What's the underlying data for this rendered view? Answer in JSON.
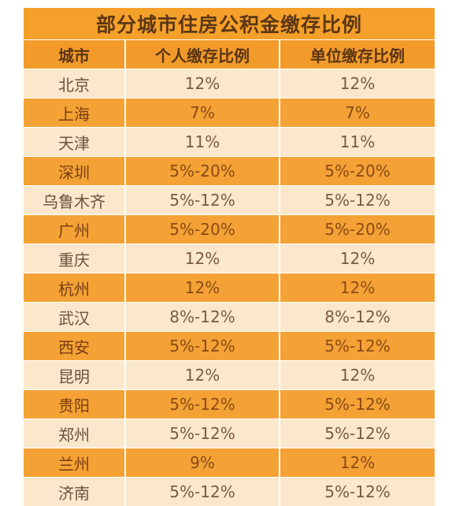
{
  "title": "部分城市住房公积金缴存比例",
  "columns": [
    "城市",
    "个人缴存比例",
    "单位缴存比例"
  ],
  "rows": [
    {
      "city": "北京",
      "personal": "12%",
      "employer": "12%"
    },
    {
      "city": "上海",
      "personal": "7%",
      "employer": "7%"
    },
    {
      "city": "天津",
      "personal": "11%",
      "employer": "11%"
    },
    {
      "city": "深圳",
      "personal": "5%-20%",
      "employer": "5%-20%"
    },
    {
      "city": "乌鲁木齐",
      "personal": "5%-12%",
      "employer": "5%-12%"
    },
    {
      "city": "广州",
      "personal": "5%-20%",
      "employer": "5%-20%"
    },
    {
      "city": "重庆",
      "personal": "12%",
      "employer": "12%"
    },
    {
      "city": "杭州",
      "personal": "12%",
      "employer": "12%"
    },
    {
      "city": "武汉",
      "personal": "8%-12%",
      "employer": "8%-12%"
    },
    {
      "city": "西安",
      "personal": "5%-12%",
      "employer": "5%-12%"
    },
    {
      "city": "昆明",
      "personal": "12%",
      "employer": "12%"
    },
    {
      "city": "贵阳",
      "personal": "5%-12%",
      "employer": "5%-12%"
    },
    {
      "city": "郑州",
      "personal": "5%-12%",
      "employer": "5%-12%"
    },
    {
      "city": "兰州",
      "personal": "9%",
      "employer": "12%"
    },
    {
      "city": "济南",
      "personal": "5%-12%",
      "employer": "5%-12%"
    }
  ],
  "colors": {
    "header": "#f29b2b",
    "row_dark": "#f4a235",
    "row_light": "#fbe8cc",
    "title_text": "#5c3715"
  }
}
